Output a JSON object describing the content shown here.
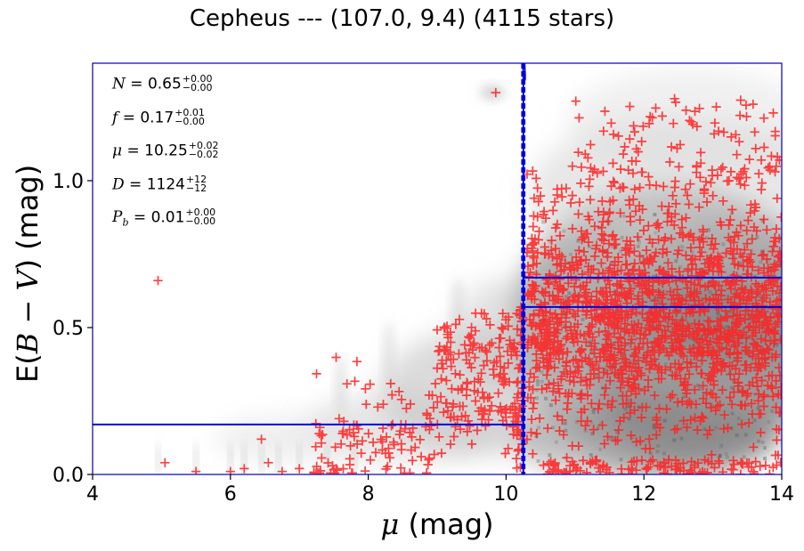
{
  "title": "Cepheus --- (107.0, 9.4) (4115 stars)",
  "xlabel": {
    "symbol": "μ",
    "unit": "(mag)"
  },
  "ylabel": {
    "prefix": "E(",
    "symbol": "B − V",
    "suffix": ")",
    "unit": "(mag)"
  },
  "stats": [
    {
      "sym": "N",
      "value": "0.65",
      "plus": "+0.00",
      "minus": "−0.00"
    },
    {
      "sym": "f",
      "value": "0.17",
      "plus": "+0.01",
      "minus": "−0.00"
    },
    {
      "sym": "μ",
      "value": "10.25",
      "plus": "+0.02",
      "minus": "−0.02"
    },
    {
      "sym": "D",
      "value": "1124",
      "plus": "+12",
      "minus": "−12"
    },
    {
      "sym": "P_b",
      "value": "0.01",
      "plus": "+0.00",
      "minus": "−0.00"
    }
  ],
  "chart_data": {
    "type": "scatter",
    "xlim": [
      4,
      14
    ],
    "ylim": [
      0,
      1.4
    ],
    "x_ticks": [
      4,
      6,
      8,
      10,
      12,
      14
    ],
    "x_tick_labels": [
      "4",
      "6",
      "8",
      "10",
      "12",
      "14"
    ],
    "y_ticks": [
      0.0,
      0.5,
      1.0
    ],
    "y_tick_labels": [
      "0.0",
      "0.5",
      "1.0"
    ],
    "grid": false,
    "background": "grayscale density of posterior samples",
    "marker_color": "#ff2020",
    "line_color": "#0000dd",
    "model": {
      "break_mu": 10.25,
      "break_mu_band": [
        10.23,
        10.27
      ],
      "foreground_ebv": 0.17,
      "cloud_ebv": 0.57,
      "cloud_ebv_upper": 0.67
    },
    "star_count": 4115
  }
}
